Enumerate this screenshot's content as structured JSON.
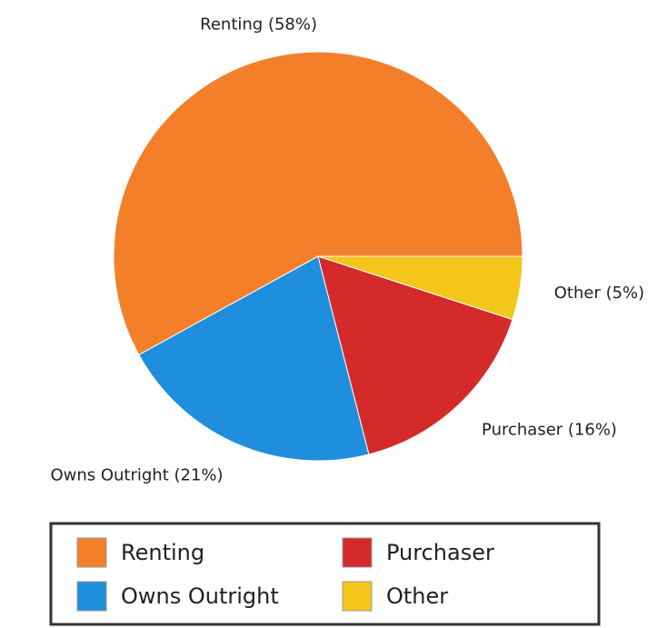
{
  "chart_data": {
    "type": "pie",
    "categories": [
      "Renting",
      "Owns Outright",
      "Purchaser",
      "Other"
    ],
    "values": [
      58,
      21,
      16,
      5
    ],
    "value_labels": [
      "Renting (58%)",
      "Owns Outright (21%)",
      "Purchaser (16%)",
      "Other (5%)"
    ],
    "colors": [
      "#f47f2a",
      "#1f8fdd",
      "#d42a2a",
      "#f5c61a"
    ],
    "legend": "bottom"
  }
}
